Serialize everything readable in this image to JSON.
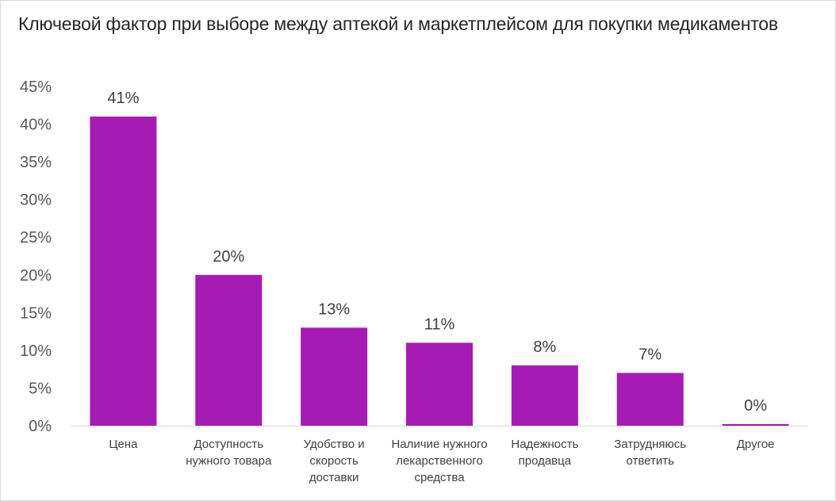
{
  "chart_data": {
    "type": "bar",
    "title": "Ключевой фактор при выборе между аптекой и маркетплейсом для покупки медикаментов",
    "categories": [
      [
        "Цена"
      ],
      [
        "Доступность",
        "нужного товара"
      ],
      [
        "Удобство и",
        "скорость",
        "доставки"
      ],
      [
        "Наличие нужного",
        "лекарственного",
        "средства"
      ],
      [
        "Надежность",
        "продавца"
      ],
      [
        "Затрудняюсь",
        "ответить"
      ],
      [
        "Другое"
      ]
    ],
    "values": [
      41,
      20,
      13,
      11,
      8,
      7,
      0
    ],
    "value_labels": [
      "41%",
      "20%",
      "13%",
      "11%",
      "8%",
      "7%",
      "0%"
    ],
    "y_ticks": [
      "0%",
      "5%",
      "10%",
      "15%",
      "20%",
      "25%",
      "30%",
      "35%",
      "40%",
      "45%"
    ],
    "ylim": [
      0,
      45
    ],
    "bar_color": "#a61bb4",
    "grid": false,
    "legend": "none"
  }
}
